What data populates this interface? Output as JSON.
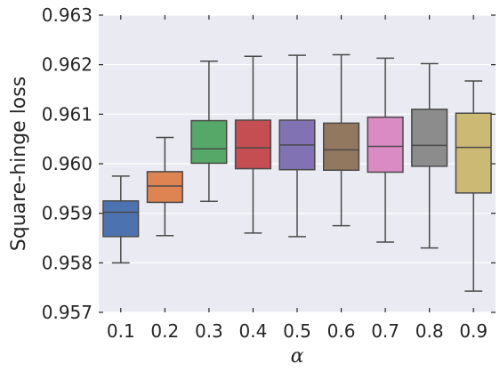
{
  "chart_data": {
    "type": "box",
    "title": "",
    "xlabel": "α",
    "ylabel": "Square-hinge loss",
    "ylim": [
      0.957,
      0.963
    ],
    "yticks": [
      "0.957",
      "0.958",
      "0.959",
      "0.960",
      "0.961",
      "0.962",
      "0.963"
    ],
    "grid": true,
    "background": "#eaeaf2",
    "categories": [
      "0.1",
      "0.2",
      "0.3",
      "0.4",
      "0.5",
      "0.6",
      "0.7",
      "0.8",
      "0.9"
    ],
    "boxes": [
      {
        "category": "0.1",
        "whisker_low": 0.958,
        "q1": 0.95853,
        "median": 0.95902,
        "q3": 0.95925,
        "whisker_high": 0.95975,
        "color": "#4c72b0"
      },
      {
        "category": "0.2",
        "whisker_low": 0.95855,
        "q1": 0.95922,
        "median": 0.95955,
        "q3": 0.95984,
        "whisker_high": 0.96053,
        "color": "#dd8452"
      },
      {
        "category": "0.3",
        "whisker_low": 0.95924,
        "q1": 0.96001,
        "median": 0.9603,
        "q3": 0.96087,
        "whisker_high": 0.96207,
        "color": "#55a868"
      },
      {
        "category": "0.4",
        "whisker_low": 0.9586,
        "q1": 0.9599,
        "median": 0.96032,
        "q3": 0.96088,
        "whisker_high": 0.96217,
        "color": "#c44e52"
      },
      {
        "category": "0.5",
        "whisker_low": 0.95853,
        "q1": 0.95988,
        "median": 0.96038,
        "q3": 0.96088,
        "whisker_high": 0.96219,
        "color": "#8172b3"
      },
      {
        "category": "0.6",
        "whisker_low": 0.95875,
        "q1": 0.95987,
        "median": 0.96028,
        "q3": 0.96082,
        "whisker_high": 0.9622,
        "color": "#937860"
      },
      {
        "category": "0.7",
        "whisker_low": 0.95842,
        "q1": 0.95983,
        "median": 0.96035,
        "q3": 0.96094,
        "whisker_high": 0.96213,
        "color": "#da8bc3"
      },
      {
        "category": "0.8",
        "whisker_low": 0.9583,
        "q1": 0.95995,
        "median": 0.96037,
        "q3": 0.9611,
        "whisker_high": 0.96202,
        "color": "#8c8c8c"
      },
      {
        "category": "0.9",
        "whisker_low": 0.95743,
        "q1": 0.95941,
        "median": 0.96033,
        "q3": 0.96102,
        "whisker_high": 0.96167,
        "color": "#ccb974"
      }
    ]
  }
}
